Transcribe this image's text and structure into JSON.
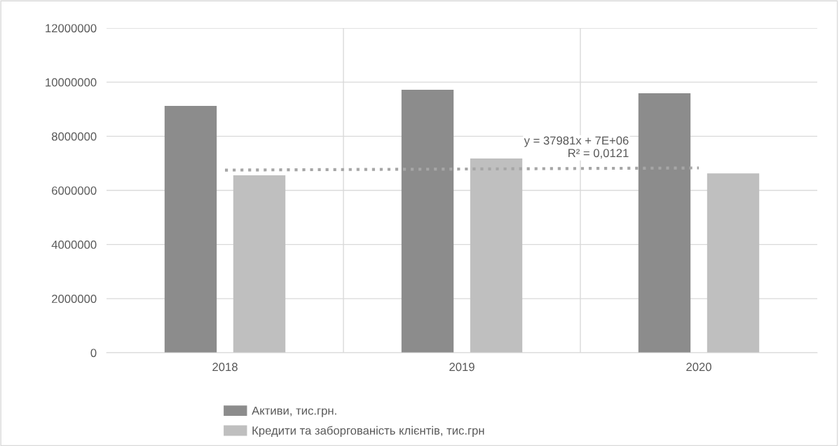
{
  "chart_data": {
    "type": "bar",
    "categories": [
      "2018",
      "2019",
      "2020"
    ],
    "series": [
      {
        "name": "Активи, тис.грн.",
        "color": "#8c8c8c",
        "values": [
          9120000,
          9720000,
          9590000
        ]
      },
      {
        "name": "Кредити та заборгованість клієнтів, тис.грн",
        "color": "#bfbfbf",
        "values": [
          6560000,
          7180000,
          6630000
        ]
      },
      {
        "type": "line",
        "color": "#a6a6a6",
        "line_style": "dotted",
        "values": [
          6750000,
          6790000,
          6830000
        ]
      }
    ],
    "ylim": [
      0,
      12000000
    ],
    "yticks": [
      0,
      2000000,
      4000000,
      6000000,
      8000000,
      10000000,
      12000000
    ],
    "grid": true,
    "legend": "bottom",
    "annotations": [
      "y = 37981x + 7E+06\nR² = 0,0121"
    ]
  }
}
